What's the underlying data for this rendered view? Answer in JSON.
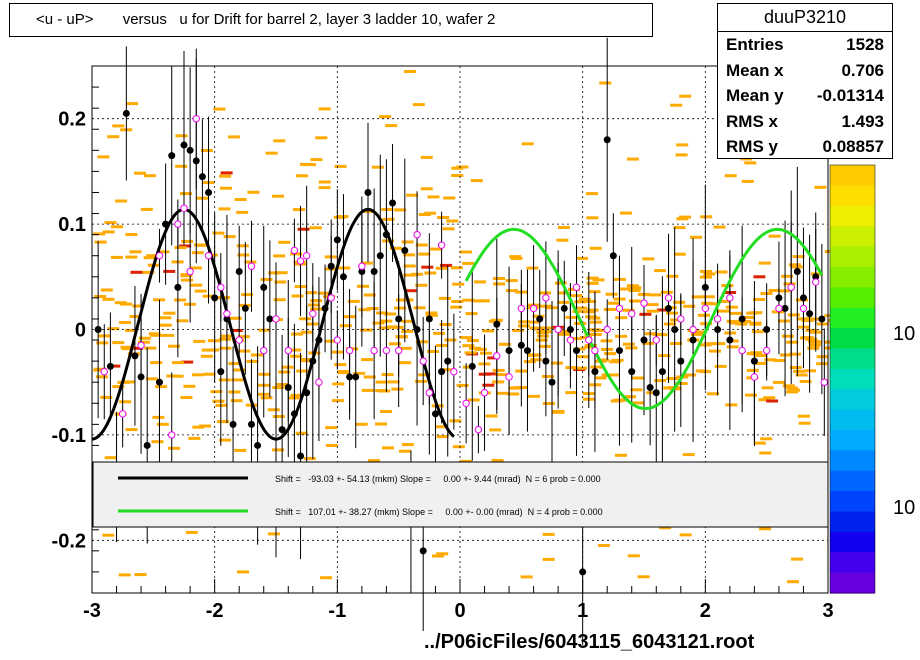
{
  "title": "<u - uP>       versus   u for Drift for barrel 2, layer 3 ladder 10, wafer 2",
  "stats": {
    "name": "duuP3210",
    "rows": [
      {
        "label": "Entries",
        "value": "1528"
      },
      {
        "label": "Mean x",
        "value": "0.706"
      },
      {
        "label": "Mean y",
        "value": "-0.01314"
      },
      {
        "label": "RMS x",
        "value": "1.493"
      },
      {
        "label": "RMS y",
        "value": "0.08857"
      }
    ]
  },
  "xlabel": "../P06icFiles/6043115_6043121.root",
  "legend": [
    {
      "color": "#000000",
      "text": "Shift =   -93.03 +- 54.13 (mkm) Slope =     0.00 +- 9.44 (mrad)  N = 6 prob = 0.000"
    },
    {
      "color": "#22dd22",
      "text": "Shift =   107.01 +- 38.27 (mkm) Slope =     0.00 +- 0.00 (mrad)  N = 4 prob = 0.000"
    }
  ],
  "colors": {
    "black_fit": "#000000",
    "green_fit": "#22dd22",
    "hist_cell": "#ffaa00",
    "hot_cell": "#dd2200",
    "open_marker": "#ee00ee"
  },
  "chart_data": {
    "type": "scatter",
    "xlim": [
      -3,
      3
    ],
    "ylim": [
      -0.25,
      0.25
    ],
    "x_ticks": [
      -3,
      -2,
      -1,
      0,
      1,
      2,
      3
    ],
    "x_tick_labels": [
      "-3",
      "-2",
      "-1",
      "0",
      "1",
      "2",
      "3"
    ],
    "y_ticks": [
      -0.2,
      -0.1,
      0,
      0.1,
      0.2
    ],
    "y_tick_labels": [
      "-0.2",
      "-0.1",
      "0",
      "0.1",
      "0.2"
    ],
    "grid": true,
    "colorbar_labels": [
      "10",
      "10"
    ],
    "fits": [
      {
        "color": "#000000",
        "x_range": [
          -3.0,
          -0.05
        ],
        "amplitude": 0.109,
        "period": 1.5,
        "phase": -2.625,
        "offset": 0.005
      },
      {
        "color": "#22dd22",
        "x_range": [
          0.05,
          2.95
        ],
        "amplitude": 0.085,
        "period": 2.15,
        "phase": -0.1,
        "offset": 0.01
      }
    ],
    "black_points": [
      [
        -2.95,
        0.0
      ],
      [
        -2.85,
        -0.035
      ],
      [
        -2.8,
        -0.14
      ],
      [
        -2.72,
        0.205
      ],
      [
        -2.65,
        -0.025
      ],
      [
        -2.6,
        -0.045
      ],
      [
        -2.55,
        -0.11
      ],
      [
        -2.45,
        -0.05
      ],
      [
        -2.4,
        0.1
      ],
      [
        -2.35,
        0.165
      ],
      [
        -2.3,
        0.04
      ],
      [
        -2.25,
        0.175
      ],
      [
        -2.2,
        0.17
      ],
      [
        -2.15,
        0.16
      ],
      [
        -2.1,
        0.145
      ],
      [
        -2.05,
        0.13
      ],
      [
        -2.0,
        0.03
      ],
      [
        -1.95,
        -0.04
      ],
      [
        -1.9,
        0.01
      ],
      [
        -1.85,
        -0.09
      ],
      [
        -1.8,
        0.055
      ],
      [
        -1.75,
        0.02
      ],
      [
        -1.7,
        -0.09
      ],
      [
        -1.65,
        -0.11
      ],
      [
        -1.6,
        0.04
      ],
      [
        -1.55,
        0.01
      ],
      [
        -1.5,
        -0.13
      ],
      [
        -1.45,
        -0.095
      ],
      [
        -1.4,
        -0.055
      ],
      [
        -1.35,
        -0.08
      ],
      [
        -1.3,
        -0.12
      ],
      [
        -1.25,
        -0.06
      ],
      [
        -1.2,
        -0.03
      ],
      [
        -1.15,
        -0.01
      ],
      [
        -1.1,
        0.02
      ],
      [
        -1.05,
        0.06
      ],
      [
        -1.0,
        0.085
      ],
      [
        -0.95,
        0.05
      ],
      [
        -0.9,
        -0.045
      ],
      [
        -0.85,
        -0.045
      ],
      [
        -0.8,
        0.055
      ],
      [
        -0.75,
        0.13
      ],
      [
        -0.7,
        0.055
      ],
      [
        -0.65,
        0.07
      ],
      [
        -0.6,
        0.09
      ],
      [
        -0.55,
        0.12
      ],
      [
        -0.5,
        0.01
      ],
      [
        -0.45,
        0.075
      ],
      [
        -0.4,
        -0.18
      ],
      [
        -0.35,
        0.0
      ],
      [
        -0.3,
        -0.21
      ],
      [
        -0.25,
        0.01
      ],
      [
        -0.2,
        -0.08
      ],
      [
        -0.15,
        -0.04
      ],
      [
        -0.1,
        -0.03
      ],
      [
        0.1,
        -0.035
      ],
      [
        0.3,
        0.005
      ],
      [
        0.4,
        -0.02
      ],
      [
        0.5,
        -0.015
      ],
      [
        0.55,
        -0.02
      ],
      [
        0.65,
        0.01
      ],
      [
        0.7,
        -0.03
      ],
      [
        0.75,
        -0.05
      ],
      [
        0.8,
        0.0
      ],
      [
        0.85,
        0.02
      ],
      [
        0.9,
        0.0
      ],
      [
        0.95,
        -0.02
      ],
      [
        1.0,
        -0.23
      ],
      [
        1.05,
        -0.01
      ],
      [
        1.1,
        -0.04
      ],
      [
        1.2,
        0.18
      ],
      [
        1.25,
        0.07
      ],
      [
        1.3,
        -0.02
      ],
      [
        1.4,
        -0.04
      ],
      [
        1.5,
        -0.01
      ],
      [
        1.55,
        -0.055
      ],
      [
        1.6,
        -0.06
      ],
      [
        1.65,
        -0.04
      ],
      [
        1.7,
        0.02
      ],
      [
        1.75,
        0.0
      ],
      [
        1.8,
        -0.03
      ],
      [
        1.9,
        -0.01
      ],
      [
        2.0,
        0.04
      ],
      [
        2.1,
        0.0
      ],
      [
        2.2,
        -0.01
      ],
      [
        2.3,
        0.01
      ],
      [
        2.4,
        -0.03
      ],
      [
        2.5,
        0.0
      ],
      [
        2.6,
        0.03
      ],
      [
        2.65,
        0.02
      ],
      [
        2.7,
        0.04
      ],
      [
        2.75,
        0.055
      ],
      [
        2.8,
        0.03
      ],
      [
        2.85,
        0.015
      ],
      [
        2.9,
        0.05
      ],
      [
        2.95,
        0.01
      ]
    ],
    "open_points": [
      [
        -2.9,
        -0.04
      ],
      [
        -2.75,
        -0.08
      ],
      [
        -2.6,
        -0.015
      ],
      [
        -2.45,
        0.07
      ],
      [
        -2.35,
        -0.1
      ],
      [
        -2.3,
        0.1
      ],
      [
        -2.25,
        0.115
      ],
      [
        -2.2,
        0.055
      ],
      [
        -2.15,
        0.2
      ],
      [
        -2.05,
        0.07
      ],
      [
        -1.95,
        0.04
      ],
      [
        -1.9,
        0.015
      ],
      [
        -1.8,
        -0.01
      ],
      [
        -1.7,
        0.06
      ],
      [
        -1.6,
        -0.02
      ],
      [
        -1.5,
        0.01
      ],
      [
        -1.4,
        -0.02
      ],
      [
        -1.35,
        0.075
      ],
      [
        -1.3,
        0.065
      ],
      [
        -1.25,
        0.07
      ],
      [
        -1.2,
        0.015
      ],
      [
        -1.15,
        -0.05
      ],
      [
        -1.05,
        0.03
      ],
      [
        -1.0,
        -0.01
      ],
      [
        -0.9,
        -0.02
      ],
      [
        -0.8,
        0.06
      ],
      [
        -0.7,
        -0.02
      ],
      [
        -0.6,
        -0.02
      ],
      [
        -0.5,
        -0.02
      ],
      [
        -0.35,
        0.09
      ],
      [
        -0.3,
        -0.03
      ],
      [
        -0.25,
        -0.06
      ],
      [
        -0.15,
        0.08
      ],
      [
        -0.05,
        -0.04
      ],
      [
        0.05,
        -0.07
      ],
      [
        0.15,
        -0.095
      ],
      [
        0.2,
        -0.06
      ],
      [
        0.3,
        -0.025
      ],
      [
        0.4,
        -0.045
      ],
      [
        0.5,
        0.02
      ],
      [
        0.6,
        0.02
      ],
      [
        0.7,
        0.03
      ],
      [
        0.8,
        0.0
      ],
      [
        0.9,
        -0.01
      ],
      [
        0.95,
        0.04
      ],
      [
        1.05,
        -0.01
      ],
      [
        1.1,
        -0.02
      ],
      [
        1.2,
        0.0
      ],
      [
        1.3,
        0.02
      ],
      [
        1.4,
        0.015
      ],
      [
        1.5,
        0.025
      ],
      [
        1.6,
        -0.01
      ],
      [
        1.7,
        0.03
      ],
      [
        1.8,
        0.01
      ],
      [
        1.9,
        0.0
      ],
      [
        2.0,
        0.02
      ],
      [
        2.1,
        0.01
      ],
      [
        2.2,
        0.03
      ],
      [
        2.3,
        -0.02
      ],
      [
        2.4,
        -0.045
      ],
      [
        2.5,
        -0.02
      ],
      [
        2.6,
        0.02
      ],
      [
        2.7,
        0.04
      ],
      [
        2.8,
        0.02
      ],
      [
        2.9,
        0.045
      ],
      [
        2.97,
        -0.05
      ]
    ]
  }
}
